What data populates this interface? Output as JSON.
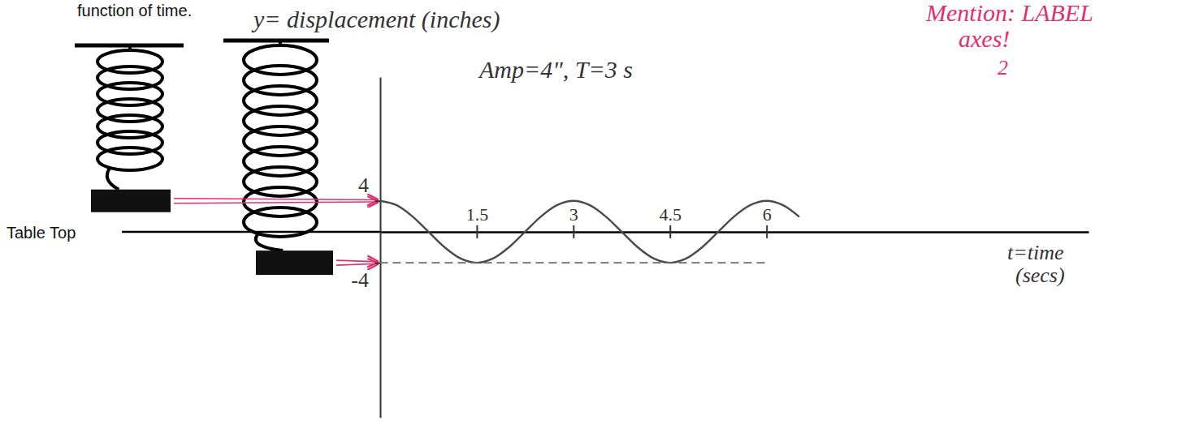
{
  "chart_data": {
    "type": "line",
    "title": "function of time.",
    "x_label": "t=time (secs)",
    "y_label": "y= displacement (inches)",
    "annotations": [
      "Amp=4\", T=3 s",
      "Mention: LABEL",
      "axes!",
      "2",
      "Table Top"
    ],
    "xlim": [
      0,
      11
    ],
    "xticks": [
      1.5,
      3,
      4.5,
      6
    ],
    "ylim": [
      -24,
      20
    ],
    "yticks": [
      4,
      -4
    ],
    "series": [
      {
        "color": "#4a4a4a",
        "line_style": "solid",
        "x": [
          0,
          0.25,
          0.5,
          0.75,
          1,
          1.25,
          1.5,
          1.75,
          2,
          2.25,
          2.5,
          2.75,
          3,
          3.25,
          3.5,
          3.75,
          4,
          4.25,
          4.5,
          4.75,
          5,
          5.25,
          5.5,
          5.75,
          6,
          6.25,
          6.5
        ],
        "values": [
          4,
          3.46,
          2,
          0,
          -2,
          -3.46,
          -4,
          -3.46,
          -2,
          0,
          2,
          3.46,
          4,
          3.46,
          2,
          0,
          -2,
          -3.46,
          -4,
          -3.46,
          -2,
          0,
          2,
          3.46,
          4,
          3.46,
          2
        ]
      },
      {
        "color": "#6a6a6a",
        "line_style": "dashed",
        "x": [
          0,
          6
        ],
        "values": [
          -4,
          -4
        ]
      }
    ]
  }
}
